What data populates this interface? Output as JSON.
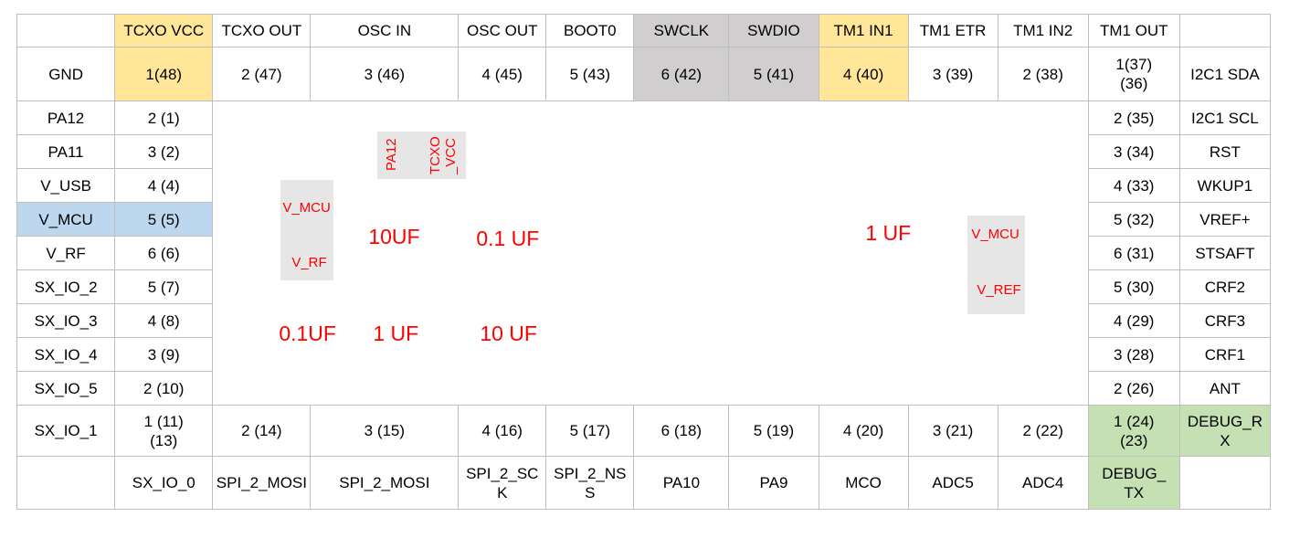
{
  "header": [
    "",
    "TCXO VCC",
    "TCXO OUT",
    "OSC IN",
    "OSC OUT",
    "BOOT0",
    "SWCLK",
    "SWDIO",
    "TM1 IN1",
    "TM1 ETR",
    "TM1 IN2",
    "TM1 OUT",
    ""
  ],
  "row_gnd": {
    "label": "GND",
    "pins": [
      "1(48)",
      "2 (47)",
      "3 (46)",
      "4 (45)",
      "5 (43)",
      "6 (42)",
      "5 (41)",
      "4 (40)",
      "3 (39)",
      "2 (38)",
      "1(37)\n(36)"
    ],
    "right_label": "I2C1 SDA"
  },
  "left_rows": [
    {
      "label": "PA12",
      "pin": "2 (1)"
    },
    {
      "label": "PA11",
      "pin": "3 (2)"
    },
    {
      "label": "V_USB",
      "pin": "4 (4)"
    },
    {
      "label": "V_MCU",
      "pin": "5 (5)"
    },
    {
      "label": "V_RF",
      "pin": "6 (6)"
    },
    {
      "label": "SX_IO_2",
      "pin": "5 (7)"
    },
    {
      "label": "SX_IO_3",
      "pin": "4 (8)"
    },
    {
      "label": "SX_IO_4",
      "pin": "3 (9)"
    },
    {
      "label": "SX_IO_5",
      "pin": "2 (10)"
    }
  ],
  "right_rows": [
    {
      "pin": "2 (35)",
      "label": "I2C1 SCL"
    },
    {
      "pin": "3 (34)",
      "label": "RST"
    },
    {
      "pin": "4 (33)",
      "label": "WKUP1"
    },
    {
      "pin": "5 (32)",
      "label": "VREF+"
    },
    {
      "pin": "6 (31)",
      "label": "STSAFT"
    },
    {
      "pin": "5 (30)",
      "label": "CRF2"
    },
    {
      "pin": "4 (29)",
      "label": "CRF3"
    },
    {
      "pin": "3 (28)",
      "label": "CRF1"
    },
    {
      "pin": "2 (26)",
      "label": "ANT"
    }
  ],
  "row_bottom_pins": {
    "label": "SX_IO_1",
    "pins": [
      "1 (11)\n(13)",
      "2 (14)",
      "3 (15)",
      "4 (16)",
      "5 (17)",
      "6 (18)",
      "5 (19)",
      "4 (20)",
      "3 (21)",
      "2 (22)",
      "1 (24)\n(23)"
    ],
    "right_label": "DEBUG_R\nX"
  },
  "row_bottom_labels": [
    "",
    "SX_IO_0",
    "SPI_2_MOSI",
    "SPI_2_MOSI",
    "SPI_2_SC\nK",
    "SPI_2_NS\nS",
    "PA10",
    "PA9",
    "MCO",
    "ADC5",
    "ADC4",
    "DEBUG_\nTX",
    ""
  ],
  "center": {
    "box1_top": "V_MCU",
    "box1_bottom": "V_RF",
    "vert1": "PA12",
    "vert2": "TCXO",
    "vert3": "_VCC",
    "cap_10uf_a": "10UF",
    "cap_01uf_a": "0.1 UF",
    "cap_1uf_a": "1 UF",
    "box2_top": "V_MCU",
    "box2_bottom": "V_REF",
    "cap_01uf_b": "0.1UF",
    "cap_1uf_b": "1 UF",
    "cap_10uf_b": "10 UF"
  },
  "colors": {
    "yellow": "#ffe699",
    "gray": "#d0cece",
    "blue": "#bdd7ee",
    "green": "#c5e0b3",
    "red": "#ff0000"
  }
}
